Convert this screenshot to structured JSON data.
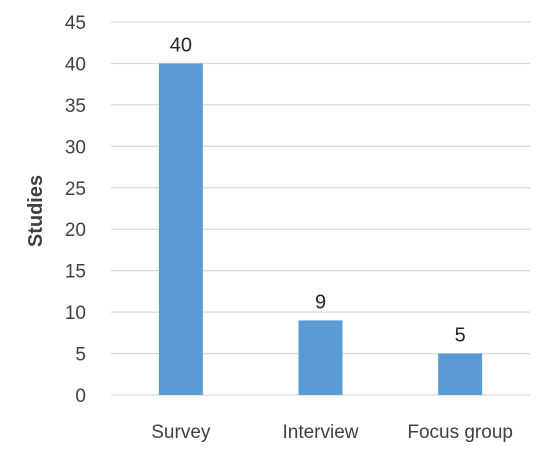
{
  "chart_data": {
    "type": "bar",
    "title": "",
    "xlabel": "",
    "ylabel": "Studies",
    "categories": [
      "Survey",
      "Interview",
      "Focus group"
    ],
    "values": [
      40,
      9,
      5
    ],
    "data_labels": [
      "40",
      "9",
      "5"
    ],
    "ylim": [
      0,
      45
    ],
    "yticks": [
      0,
      5,
      10,
      15,
      20,
      25,
      30,
      35,
      40,
      45
    ],
    "grid": true,
    "legend": "none",
    "bar_color": "#5B9BD5",
    "grid_color": "#D9D9D9"
  }
}
